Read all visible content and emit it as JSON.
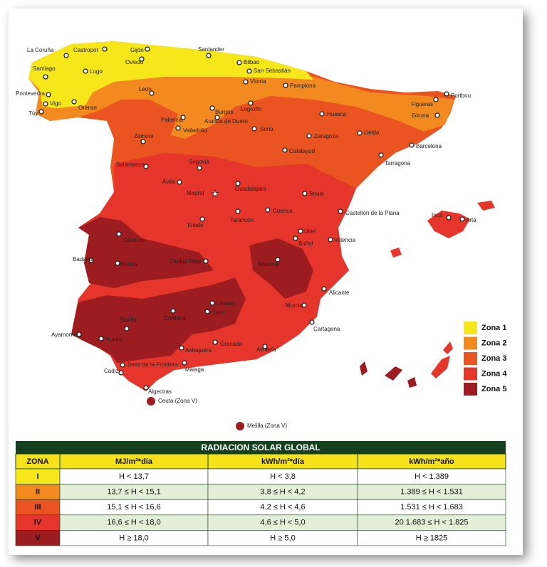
{
  "map": {
    "cities": [
      "La Coruña",
      "Castropol",
      "Gijón",
      "Oviedo",
      "Santander",
      "Bilbao",
      "San Sebastián",
      "Vitoria",
      "Pamplona",
      "Santiago",
      "Lugo",
      "Pontevedra",
      "Vigo",
      "Túy",
      "Orense",
      "León",
      "Palencia",
      "Burgos",
      "Logroño",
      "Valladolid",
      "Aranda de Duero",
      "Soria",
      "Huesca",
      "Figueras",
      "Portbou",
      "Girona",
      "Zamora",
      "Zaragoza",
      "Lleida",
      "Barcelona",
      "Calatayud",
      "Tarragona",
      "Salamanca",
      "Segovia",
      "Ávila",
      "Madrid",
      "Guadalajara",
      "Teruel",
      "Cuenca",
      "Tarancón",
      "Castellón de la Plana",
      "Toledo",
      "Utiel",
      "Buñol",
      "Valencia",
      "Cáceres",
      "Inca",
      "Artá",
      "Badajoz",
      "Mérida",
      "Ciudad Real",
      "Albacete",
      "Alicante",
      "Linares",
      "Jaén",
      "Córdoba",
      "Murcia",
      "Sevilla",
      "Cartagena",
      "Ayamonte",
      "Huelva",
      "Granada",
      "Almería",
      "Antequera",
      "Jerez de la Frontera",
      "Málaga",
      "Cadiz",
      "Algeciras",
      "Ceuta (Zona V)",
      "Melilla (Zona V)"
    ],
    "legend": [
      "Zona 1",
      "Zona 2",
      "Zona 3",
      "Zona 4",
      "Zona 5"
    ]
  },
  "table": {
    "title": "RADIACION SOLAR GLOBAL",
    "headers": [
      "ZONA",
      "MJ/m²*día",
      "kWh/m²*día",
      "kWh/m²*año"
    ],
    "rows": [
      [
        "I",
        "H < 13,7",
        "H < 3,8",
        "H < 1.389"
      ],
      [
        "II",
        "13,7 ≤ H < 15,1",
        "3,8 ≤ H < 4,2",
        "1.389 ≤ H < 1.531"
      ],
      [
        "III",
        "15,1 ≤ H < 16,6",
        "4,2 ≤ H < 4,6",
        "1.531 ≤ H < 1.683"
      ],
      [
        "IV",
        "16,6 ≤ H < 18,0",
        "4,6 ≤ H < 5,0",
        "20 1.683 ≤ H < 1.825"
      ],
      [
        "V",
        "H ≥ 18,0",
        "H ≥ 5,0",
        "H ≥ 1825"
      ]
    ]
  }
}
